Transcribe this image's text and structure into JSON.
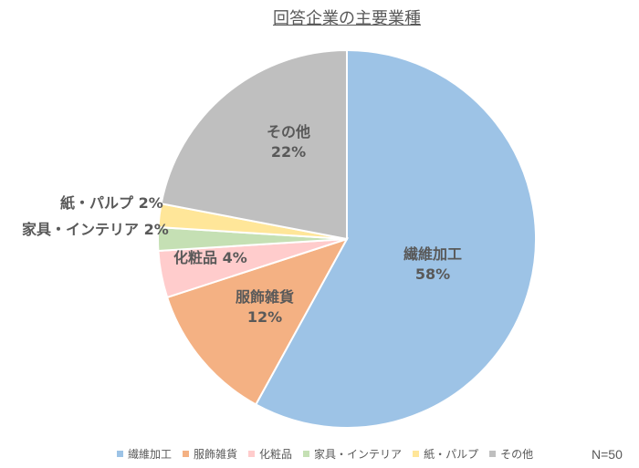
{
  "chart_data": {
    "type": "pie",
    "title": "回答企業の主要業種",
    "note": "N=50",
    "legend_position": "bottom",
    "slices": [
      {
        "name": "繊維加工",
        "value": 58,
        "label": "58%",
        "color": "#9DC3E6"
      },
      {
        "name": "服飾雑貨",
        "value": 12,
        "label": "12%",
        "color": "#F4B183"
      },
      {
        "name": "化粧品",
        "value": 4,
        "label": "4%",
        "color": "#FFCCCC"
      },
      {
        "name": "家具・インテリア",
        "value": 2,
        "label": "2%",
        "color": "#C5E0B4"
      },
      {
        "name": "紙・パルプ",
        "value": 2,
        "label": "2%",
        "color": "#FFE699"
      },
      {
        "name": "その他",
        "value": 22,
        "label": "22%",
        "color": "#BFBFBF"
      }
    ]
  }
}
